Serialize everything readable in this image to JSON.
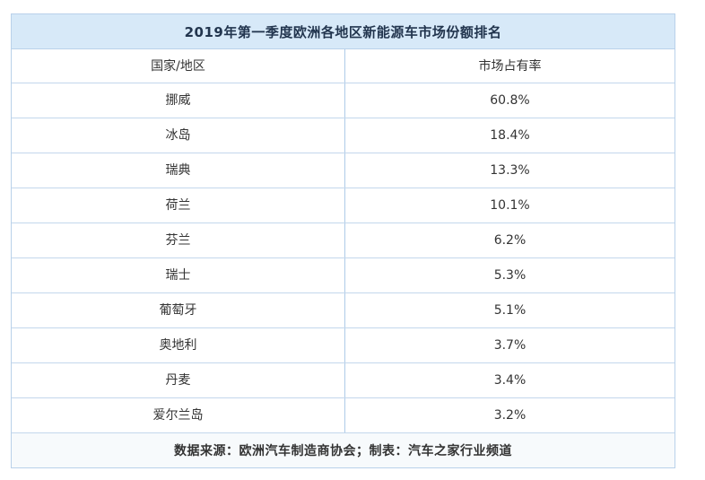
{
  "table": {
    "title": "2019年第一季度欧洲各地区新能源车市场份额排名",
    "columns": {
      "region": "国家/地区",
      "share": "市场占有率"
    },
    "rows": [
      {
        "region": "挪威",
        "share": "60.8%"
      },
      {
        "region": "冰岛",
        "share": "18.4%"
      },
      {
        "region": "瑞典",
        "share": "13.3%"
      },
      {
        "region": "荷兰",
        "share": "10.1%"
      },
      {
        "region": "芬兰",
        "share": "6.2%"
      },
      {
        "region": "瑞士",
        "share": "5.3%"
      },
      {
        "region": "葡萄牙",
        "share": "5.1%"
      },
      {
        "region": "奥地利",
        "share": "3.7%"
      },
      {
        "region": "丹麦",
        "share": "3.4%"
      },
      {
        "region": "爱尔兰岛",
        "share": "3.2%"
      }
    ],
    "footer": "数据来源：欧洲汽车制造商协会；制表：汽车之家行业频道",
    "colors": {
      "title_bg": "#d7e9f8",
      "footer_bg": "#f7fafc",
      "border": "#b9d1ea",
      "title_text": "#22354e",
      "cell_text": "#333333"
    }
  },
  "chart_data": {
    "type": "table",
    "title": "2019年第一季度欧洲各地区新能源车市场份额排名",
    "columns": [
      "国家/地区",
      "市场占有率"
    ],
    "categories": [
      "挪威",
      "冰岛",
      "瑞典",
      "荷兰",
      "芬兰",
      "瑞士",
      "葡萄牙",
      "奥地利",
      "丹麦",
      "爱尔兰岛"
    ],
    "values": [
      60.8,
      18.4,
      13.3,
      10.1,
      6.2,
      5.3,
      5.1,
      3.7,
      3.4,
      3.2
    ],
    "unit": "%",
    "source_note": "数据来源：欧洲汽车制造商协会；制表：汽车之家行业频道",
    "layout": "single two-column centered table, light blue title band on top, source note band on bottom"
  }
}
